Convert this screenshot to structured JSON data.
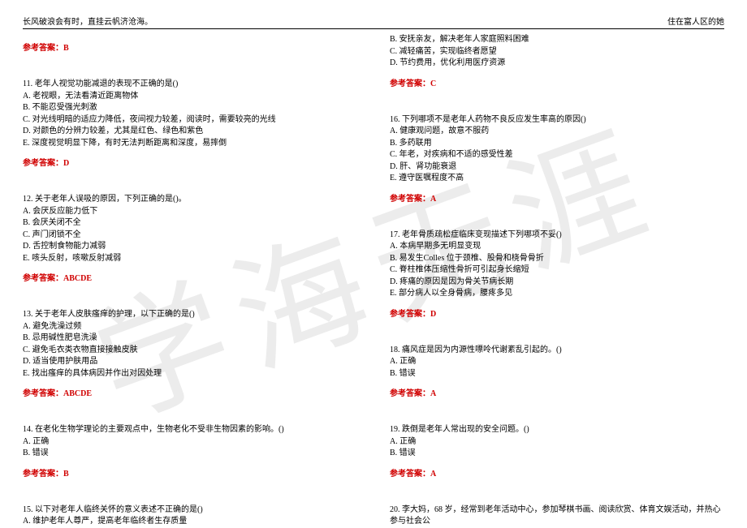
{
  "header": {
    "left": "长风破浪会有时，直挂云帆济沧海。",
    "right": "住在富人区的她"
  },
  "colors": {
    "answer": "#d00000",
    "text": "#000000",
    "watermark": "rgba(180,180,180,0.25)"
  },
  "left": {
    "ans_prev": "参考答案：B",
    "q11": {
      "stem": "11. 老年人视觉功能减退的表现不正确的是()",
      "A": "A. 老视眼，无法看清近距离物体",
      "B": "B. 不能忍受强光刺激",
      "C": "C. 对光线明暗的适应力降低，夜间视力较差，阅读时，需要较亮的光线",
      "D": "D. 对颜色的分辨力较差，尤其是红色、绿色和紫色",
      "E": "E. 深度视觉明显下降，有时无法判断距离和深度，易摔倒",
      "ans": "参考答案：D"
    },
    "q12": {
      "stem": "12. 关于老年人误吸的原因，下列正确的是()。",
      "A": "A. 会厌反应能力低下",
      "B": "B. 会厌关闭不全",
      "C": "C. 声门闭锁不全",
      "D": "D. 舌控制食物能力减弱",
      "E": "E. 咳头反射，咳嗽反射减弱",
      "ans": "参考答案：ABCDE"
    },
    "q13": {
      "stem": "13. 关于老年人皮肤瘙痒的护理，以下正确的是()",
      "A": "A. 避免洗澡过频",
      "B": "B. 忌用碱性肥皂洗澡",
      "C": "C. 避免毛衣类衣物直接接触皮肤",
      "D": "D. 适当使用护肤用品",
      "E": "E. 找出瘙痒的具体病因并作出对因处理",
      "ans": "参考答案：ABCDE"
    },
    "q14": {
      "stem": "14. 在老化生物学理论的主要观点中，生物老化不受非生物因素的影响。()",
      "A": "A. 正确",
      "B": "B. 错误",
      "ans": "参考答案：B"
    },
    "q15": {
      "stem": "15. 以下对老年人临终关怀的意义表述不正确的是()",
      "A": "A. 维护老年人尊严，提高老年临终者生存质量"
    }
  },
  "right": {
    "optB": "B. 安抚亲友，解决老年人家庭照料困难",
    "optC": "C. 减轻痛苦，实现临终者愿望",
    "optD": "D. 节约费用，优化利用医疗资源",
    "ans15": "参考答案：C",
    "q16": {
      "stem": "16. 下列哪项不是老年人药物不良反应发生率高的原因()",
      "A": "A. 健康观问题，故意不服药",
      "B": "B. 多药联用",
      "C": "C. 年老，对疾病和不适的感受性差",
      "D": "D. 肝、肾功能衰退",
      "E": "E. 遵守医嘱程度不高",
      "ans": "参考答案：A"
    },
    "q17": {
      "stem": "17. 老年骨质疏松症临床变现描述下列哪项不妥()",
      "A": "A. 本病早期多无明显变现",
      "B": "B. 易发生Colles 位于颈椎、股骨和桡骨骨折",
      "C": "C. 脊柱椎体压缩性骨折可引起身长缩短",
      "D": "D. 疼痛的原因是因为骨关节病长期",
      "E": "E. 部分病人以全身骨病，腰疼多见",
      "ans": "参考答案：D"
    },
    "q18": {
      "stem": "18. 痛风症是因为内源性嘌呤代谢紊乱引起的。()",
      "A": "A. 正确",
      "B": "B. 错误",
      "ans": "参考答案：A"
    },
    "q19": {
      "stem": "19. 跌倒是老年人常出现的安全问题。()",
      "A": "A. 正确",
      "B": "B. 错误",
      "ans": "参考答案：A"
    },
    "q20": {
      "stem": "20. 李大妈，68 岁，经常到老年活动中心，参加琴棋书画、阅读欣赏、体育文娱活动，并热心参与社会公"
    }
  }
}
